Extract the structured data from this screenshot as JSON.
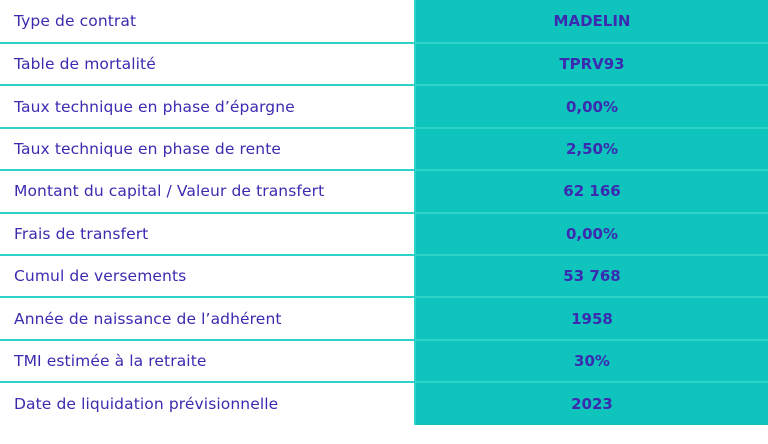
{
  "rows": [
    {
      "label": "Type de contrat",
      "value": "MADELIN"
    },
    {
      "label": "Table de mortalité",
      "value": "TPRV93"
    },
    {
      "label": "Taux technique en phase d’épargne",
      "value": "0,00%"
    },
    {
      "label": "Taux technique en phase de rente",
      "value": "2,50%"
    },
    {
      "label": "Montant du capital / Valeur de transfert",
      "value": "62 166"
    },
    {
      "label": "Frais de transfert",
      "value": "0,00%"
    },
    {
      "label": "Cumul de versements",
      "value": "53 768"
    },
    {
      "label": "Année de naissance de l’adhérent",
      "value": "1958"
    },
    {
      "label": "TMI estimée à la retraite",
      "value": "30%"
    },
    {
      "label": "Date de liquidation prévisionnelle",
      "value": "2023"
    }
  ],
  "colors": {
    "text": "#3a2bb0",
    "value_background": "#0fc4bd",
    "border": "#2ed3c8",
    "label_background": "#ffffff"
  }
}
